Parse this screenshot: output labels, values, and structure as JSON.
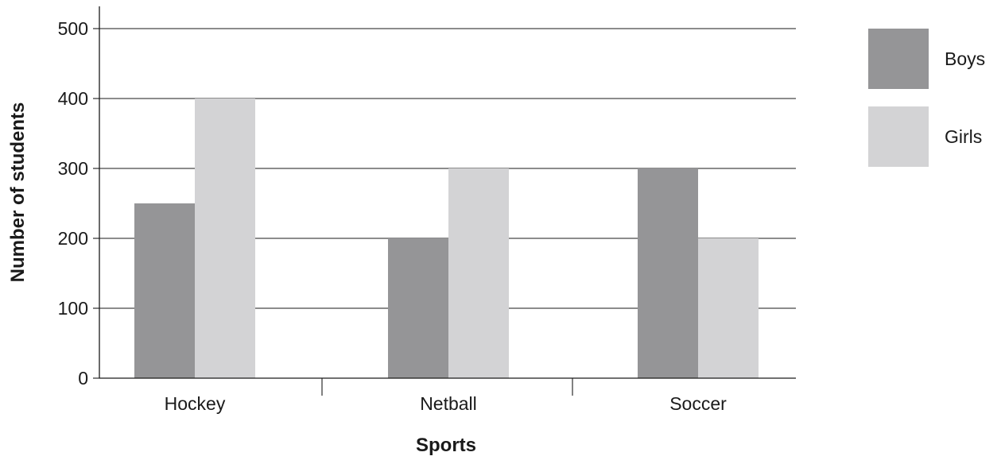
{
  "chart_data": {
    "type": "bar",
    "title": "",
    "xlabel": "Sports",
    "ylabel": "Number of students",
    "categories": [
      "Hockey",
      "Netball",
      "Soccer"
    ],
    "series": [
      {
        "name": "Boys",
        "values": [
          250,
          200,
          300
        ],
        "color": "#959597"
      },
      {
        "name": "Girls",
        "values": [
          400,
          300,
          200
        ],
        "color": "#d3d3d5"
      }
    ],
    "ylim": [
      0,
      500
    ],
    "yticks": [
      0,
      100,
      200,
      300,
      400,
      500
    ],
    "grid": true,
    "legend": "right"
  }
}
